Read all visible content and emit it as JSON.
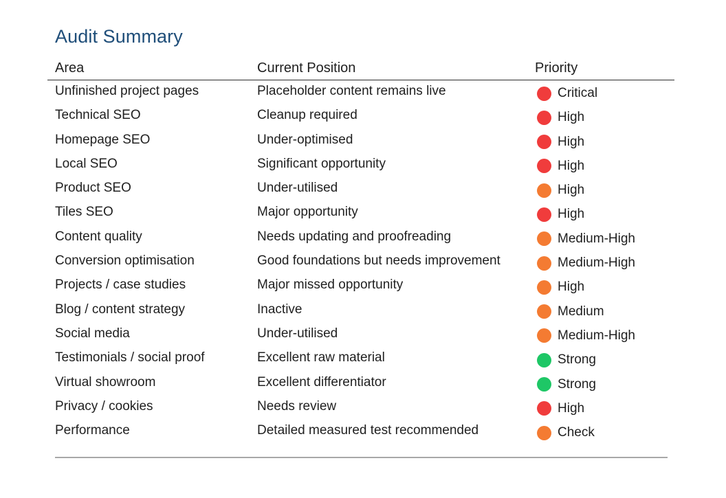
{
  "title": "Audit Summary",
  "headers": {
    "area": "Area",
    "position": "Current Position",
    "priority": "Priority"
  },
  "rows": [
    {
      "area": "Unfinished project pages",
      "position": "Placeholder content remains live",
      "priority": "Critical",
      "status": "red"
    },
    {
      "area": "Technical SEO",
      "position": "Cleanup required",
      "priority": "High",
      "status": "red"
    },
    {
      "area": "Homepage SEO",
      "position": "Under-optimised",
      "priority": "High",
      "status": "red"
    },
    {
      "area": "Local SEO",
      "position": "Significant opportunity",
      "priority": "High",
      "status": "red"
    },
    {
      "area": "Product SEO",
      "position": "Under-utilised",
      "priority": "High",
      "status": "orange"
    },
    {
      "area": "Tiles SEO",
      "position": "Major opportunity",
      "priority": "High",
      "status": "red"
    },
    {
      "area": "Content quality",
      "position": "Needs updating and proofreading",
      "priority": "Medium-High",
      "status": "orange"
    },
    {
      "area": "Conversion optimisation",
      "position": "Good foundations but needs improvement",
      "priority": "Medium-High",
      "status": "orange"
    },
    {
      "area": "Projects / case studies",
      "position": "Major missed opportunity",
      "priority": "High",
      "status": "orange"
    },
    {
      "area": "Blog / content strategy",
      "position": "Inactive",
      "priority": "Medium",
      "status": "orange"
    },
    {
      "area": "Social media",
      "position": "Under-utilised",
      "priority": "Medium-High",
      "status": "orange"
    },
    {
      "area": "Testimonials / social proof",
      "position": "Excellent raw material",
      "priority": "Strong",
      "status": "green"
    },
    {
      "area": "Virtual showroom",
      "position": "Excellent differentiator",
      "priority": "Strong",
      "status": "green"
    },
    {
      "area": "Privacy / cookies",
      "position": "Needs review",
      "priority": "High",
      "status": "red"
    },
    {
      "area": "Performance",
      "position": "Detailed measured test recommended",
      "priority": "Check",
      "status": "orange"
    }
  ],
  "status_colors": {
    "red": "#f03c3c",
    "orange": "#f47b32",
    "green": "#1ec766"
  }
}
